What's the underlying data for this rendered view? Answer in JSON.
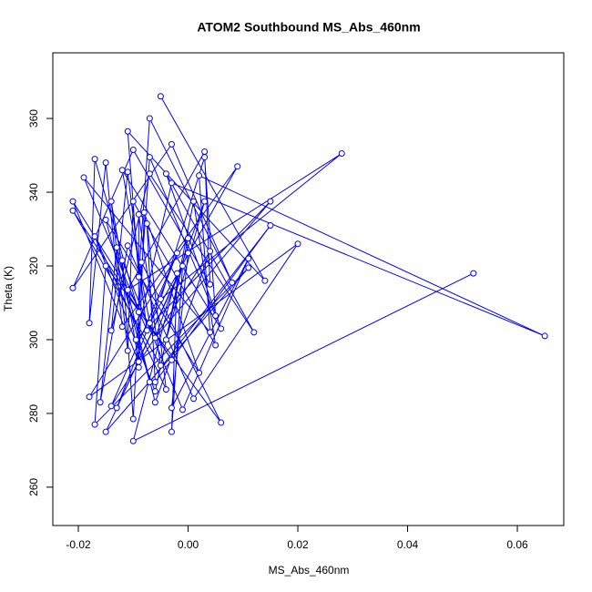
{
  "chart_data": {
    "type": "line",
    "title": "ATOM2 Southbound MS_Abs_460nm",
    "xlabel": "MS_Abs_460nm",
    "ylabel": "Theta (K)",
    "color": "#0000ff",
    "markers": "circle",
    "grid": false,
    "xlim": [
      -0.02465,
      0.06846
    ],
    "ylim": [
      249.6,
      377.8
    ],
    "xticks": [
      -0.02,
      {
        "value": 0,
        "label": "0.00"
      },
      {
        "value": 0.02,
        "label": "0.02"
      },
      {
        "value": 0.04,
        "label": "0.04"
      },
      {
        "value": 0.06,
        "label": "0.06"
      }
    ],
    "yticks": [
      260,
      280,
      300,
      320,
      340,
      360
    ],
    "x": [
      -0.005,
      0.014,
      -0.011,
      -0.009,
      -0.007,
      0.008,
      -0.003,
      -0.021,
      -0.01,
      0.004,
      0.003,
      -0.011,
      0.028,
      -0.005,
      0.003,
      0.005,
      -0.007,
      -0.009,
      -0.017,
      -0.018,
      -0.015,
      -0.012,
      0.009,
      -0.007,
      -0.012,
      0.006,
      -0.004,
      0.012,
      -0.007,
      -0.014,
      -0.011,
      -0.0075,
      -0.019,
      0.004,
      0.002,
      0.065,
      -0.003,
      -0.0095,
      0.015,
      -0.006,
      0.003,
      -0.004,
      0.001,
      0.005,
      -0.01,
      -0.011,
      -0.014,
      -0.009,
      -0.021,
      -0.003,
      -0.021,
      -0.005,
      -0.009,
      -0.009,
      -0.008,
      0.002,
      -0.015,
      -0.007,
      0.015,
      -0.006,
      -0.0075,
      -0.004,
      -0.017,
      -0.006,
      0,
      -0.018,
      0.02,
      0.001,
      -0.011,
      -0.016,
      -0.013,
      -0.006,
      0.004,
      -0.014,
      -0.002,
      -0.013,
      0,
      -0.003,
      0.011,
      -0.001,
      -0.012,
      -0.01,
      -0.0085,
      0.006,
      -0.015,
      -0.017,
      0.011,
      -0.015,
      -0.001,
      -0.003,
      -0.002,
      -0.01,
      0.052
    ],
    "values": [
      366,
      316,
      356.5,
      317,
      360,
      315.5,
      353,
      314,
      351.5,
      315,
      351,
      313.5,
      350.5,
      311,
      349.5,
      306.5,
      349.5,
      307.5,
      349,
      304.5,
      348,
      303.5,
      347,
      304.5,
      346,
      303,
      345,
      302,
      345,
      302.5,
      345.5,
      302.5,
      344,
      302,
      344.5,
      301,
      342.5,
      300,
      337.5,
      300.5,
      337.5,
      300,
      337.5,
      298.5,
      337.5,
      297,
      337.5,
      294,
      337.5,
      294.5,
      335,
      293,
      334,
      292.5,
      334.5,
      291,
      332.5,
      288.5,
      331,
      288.5,
      331.5,
      286.5,
      328,
      286,
      327.5,
      284.5,
      326,
      284,
      325.5,
      283,
      325,
      283,
      324,
      282,
      323.5,
      281.5,
      323.5,
      281.5,
      322,
      281,
      321.5,
      278.5,
      321,
      277.5,
      320,
      277,
      319.5,
      275,
      320,
      275,
      318,
      272.5,
      318
    ]
  }
}
